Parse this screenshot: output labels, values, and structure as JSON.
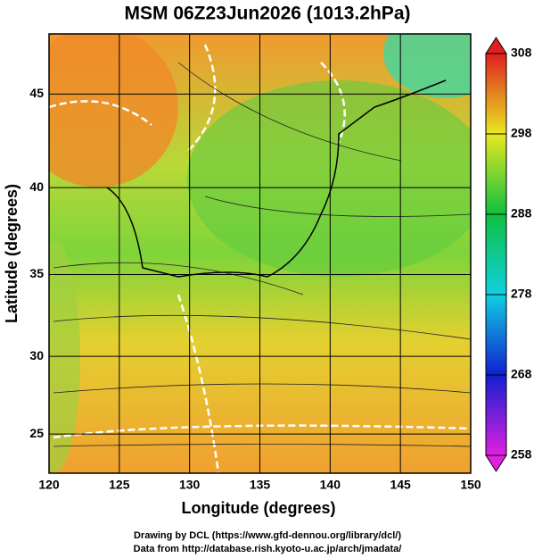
{
  "chart_data": {
    "type": "map",
    "title": "MSM 06Z23Jun2026 (1013.2hPa)",
    "x_label": "Longitude (degrees)",
    "y_label": "Latitude  (degrees)",
    "projection": "mercator",
    "xlim": [
      120,
      150
    ],
    "ylim": [
      22.4,
      48
    ],
    "xticks": [
      120,
      125,
      130,
      135,
      140,
      145,
      150
    ],
    "yticks": [
      25,
      30,
      35,
      40,
      45
    ],
    "grid": true,
    "colorbar": {
      "lim": [
        258,
        308
      ],
      "ticks": [
        258,
        268,
        278,
        288,
        298,
        308
      ],
      "colors": [
        "#e020e0",
        "#1020d0",
        "#10d0e0",
        "#10c040",
        "#e8e820",
        "#e02020"
      ]
    }
  },
  "credits": [
    "Drawing by DCL (https://www.gfd-dennou.org/library/dcl/)",
    "Data from http://database.rish.kyoto-u.ac.jp/arch/jmadata/"
  ]
}
